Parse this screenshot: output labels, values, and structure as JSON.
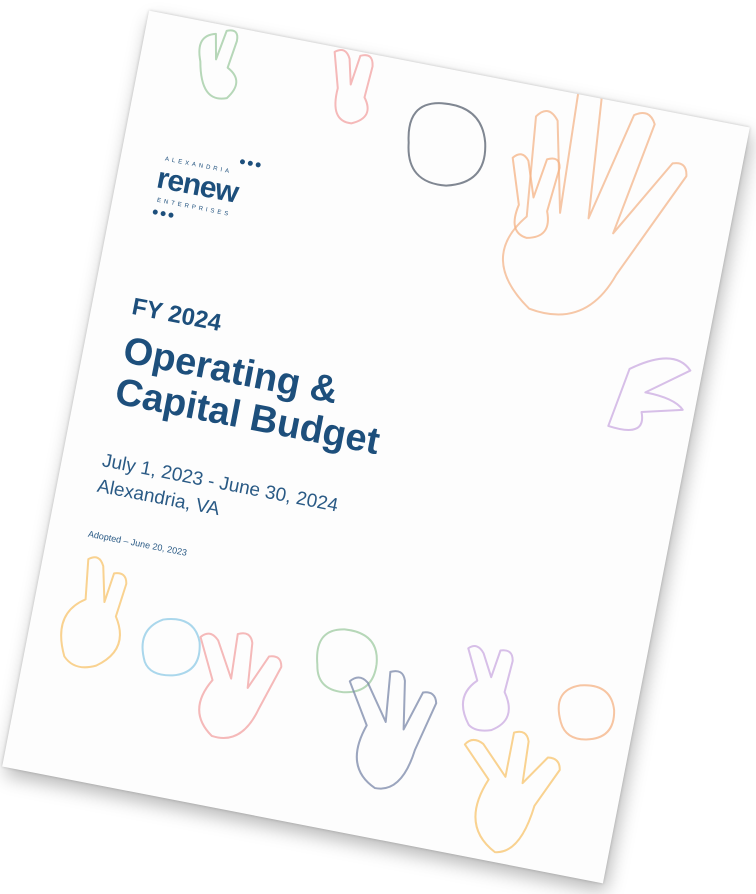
{
  "logo": {
    "top": "ALEXANDRIA",
    "main": "renew",
    "bottom": "ENTERPRISES"
  },
  "cover": {
    "fiscal_year": "FY 2024",
    "title_lines": [
      "Operating &",
      "Capital Budget"
    ],
    "period": "July 1, 2023 - June 30, 2024",
    "location": "Alexandria, VA",
    "adopted": "Adopted – June 20, 2023"
  }
}
